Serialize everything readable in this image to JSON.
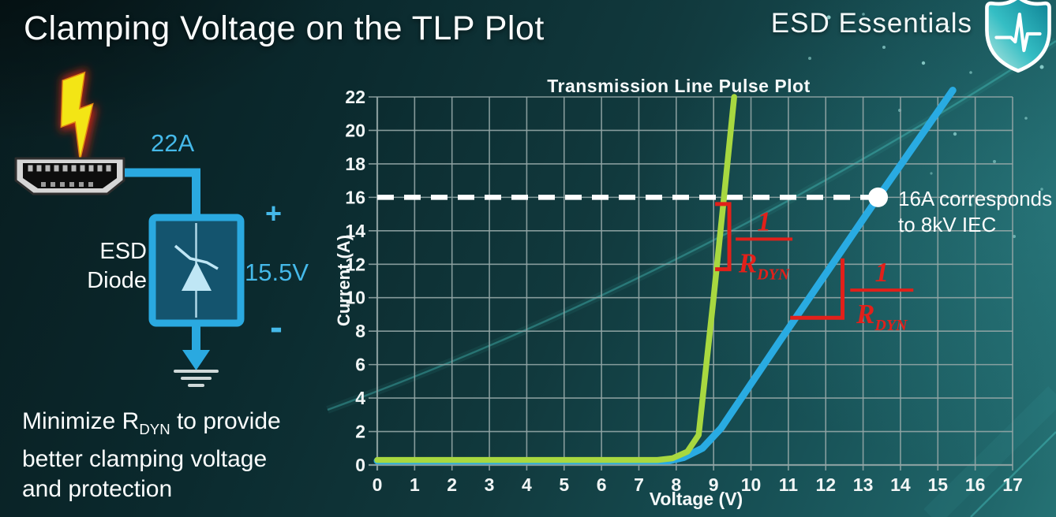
{
  "slide": {
    "title": "Clamping Voltage on the TLP Plot",
    "brand": "ESD Essentials"
  },
  "diagram": {
    "surge_current": "22A",
    "device_line1": "ESD",
    "device_line2": "Diode",
    "polarity_plus": "+",
    "clamp_voltage": "15.5V",
    "polarity_minus": "-",
    "colors": {
      "wire": "#2aa9e0",
      "label_blue": "#45b9e9",
      "bolt_yellow": "#f3e515",
      "bolt_glow": "#cf2815"
    }
  },
  "note": {
    "line1_pre": "Minimize R",
    "line1_sub": "DYN",
    "line1_post": " to provide",
    "line2": "better clamping voltage",
    "line3": "and protection"
  },
  "chart_data": {
    "type": "line",
    "title": "Transmission Line Pulse Plot",
    "xlabel": "Voltage (V)",
    "ylabel": "Current (A)",
    "xlim": [
      0,
      17
    ],
    "ylim": [
      0,
      22
    ],
    "x_ticks": [
      0,
      1,
      2,
      3,
      4,
      5,
      6,
      7,
      8,
      9,
      10,
      11,
      12,
      13,
      14,
      15,
      16,
      17
    ],
    "y_ticks": [
      0,
      2,
      4,
      6,
      8,
      10,
      12,
      14,
      16,
      18,
      20,
      22
    ],
    "grid": {
      "x_step": 1,
      "y_step": 2,
      "color": "#93a6a6"
    },
    "series": [
      {
        "name": "blue_curve_higher_rdyn",
        "color": "#29abe2",
        "width": 9,
        "points": [
          [
            0,
            0.25
          ],
          [
            7.8,
            0.25
          ],
          [
            8.2,
            0.45
          ],
          [
            8.7,
            1.0
          ],
          [
            9.2,
            2.2
          ],
          [
            10.8,
            7.5
          ],
          [
            13.4,
            16
          ],
          [
            15.4,
            22.4
          ]
        ]
      },
      {
        "name": "green_curve_low_rdyn",
        "color": "#a8d840",
        "width": 7.5,
        "points": [
          [
            0,
            0.3
          ],
          [
            7.5,
            0.3
          ],
          [
            7.9,
            0.4
          ],
          [
            8.3,
            0.8
          ],
          [
            8.6,
            1.8
          ],
          [
            9.0,
            10
          ],
          [
            9.3,
            16.5
          ],
          [
            9.55,
            22
          ]
        ]
      }
    ],
    "reference_line": {
      "current": 16,
      "color": "#ffffff",
      "style": "dashed"
    },
    "marker": {
      "voltage": 13.4,
      "current": 16,
      "label_line1": "16A corresponds",
      "label_line2": "to 8kV IEC"
    },
    "annotations": [
      {
        "num": "1",
        "den": "R",
        "den_sub": "DYN",
        "color": "#e2201a",
        "frac_v": 10.35,
        "frac_a": 13.5,
        "half_w": 36,
        "bracket": {
          "kind": "vertical",
          "v": 9.42,
          "a_top": 15.6,
          "a_bot": 11.7,
          "tick": 18
        }
      },
      {
        "num": "1",
        "den": "R",
        "den_sub": "DYN",
        "color": "#e2201a",
        "frac_v": 13.5,
        "frac_a": 10.45,
        "half_w": 40,
        "bracket": {
          "kind": "angle",
          "v1": 11.05,
          "v2": 12.45,
          "a_base": 8.8,
          "a_top": 12.35
        }
      }
    ]
  }
}
